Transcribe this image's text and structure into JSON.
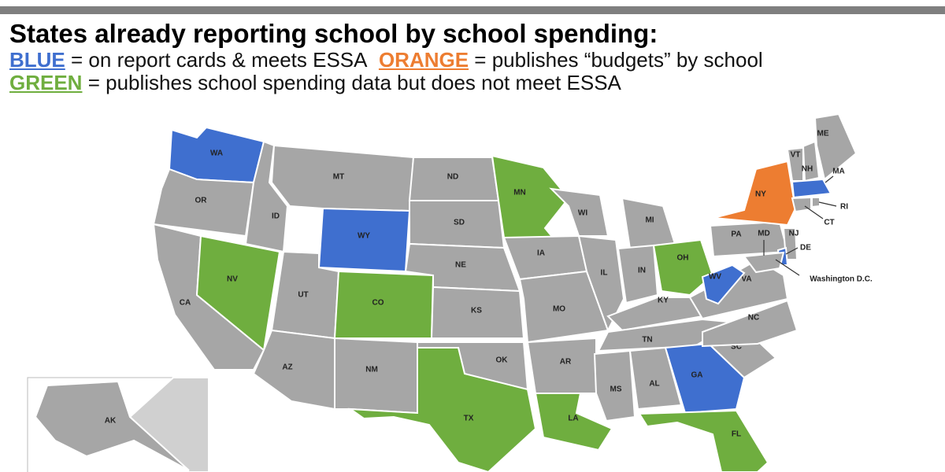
{
  "title": "States already reporting school by school spending:",
  "legend": [
    {
      "key": "BLUE",
      "text": "= on report cards & meets ESSA",
      "color": "#3f6fcf"
    },
    {
      "key": "ORANGE",
      "text": "= publishes “budgets” by school",
      "color": "#ed7d31"
    },
    {
      "key": "GREEN",
      "text": "= publishes school spending data but does not meet ESSA",
      "color": "#6fae3f"
    }
  ],
  "states": [
    {
      "label": "WA",
      "color": "#3f6fcf"
    },
    {
      "label": "OR",
      "color": "#a6a6a6"
    },
    {
      "label": "CA",
      "color": "#a6a6a6"
    },
    {
      "label": "NV",
      "color": "#6fae3f"
    },
    {
      "label": "ID",
      "color": "#a6a6a6"
    },
    {
      "label": "MT",
      "color": "#a6a6a6"
    },
    {
      "label": "WY",
      "color": "#3f6fcf"
    },
    {
      "label": "UT",
      "color": "#a6a6a6"
    },
    {
      "label": "CO",
      "color": "#6fae3f"
    },
    {
      "label": "AZ",
      "color": "#a6a6a6"
    },
    {
      "label": "NM",
      "color": "#a6a6a6"
    },
    {
      "label": "ND",
      "color": "#a6a6a6"
    },
    {
      "label": "SD",
      "color": "#a6a6a6"
    },
    {
      "label": "NE",
      "color": "#a6a6a6"
    },
    {
      "label": "KS",
      "color": "#a6a6a6"
    },
    {
      "label": "OK",
      "color": "#a6a6a6"
    },
    {
      "label": "TX",
      "color": "#6fae3f"
    },
    {
      "label": "MN",
      "color": "#6fae3f"
    },
    {
      "label": "IA",
      "color": "#a6a6a6"
    },
    {
      "label": "MO",
      "color": "#a6a6a6"
    },
    {
      "label": "AR",
      "color": "#a6a6a6"
    },
    {
      "label": "LA",
      "color": "#6fae3f"
    },
    {
      "label": "WI",
      "color": "#a6a6a6"
    },
    {
      "label": "IL",
      "color": "#a6a6a6"
    },
    {
      "label": "MI",
      "color": "#a6a6a6"
    },
    {
      "label": "IN",
      "color": "#a6a6a6"
    },
    {
      "label": "OH",
      "color": "#6fae3f"
    },
    {
      "label": "KY",
      "color": "#a6a6a6"
    },
    {
      "label": "TN",
      "color": "#a6a6a6"
    },
    {
      "label": "MS",
      "color": "#a6a6a6"
    },
    {
      "label": "AL",
      "color": "#a6a6a6"
    },
    {
      "label": "GA",
      "color": "#3f6fcf"
    },
    {
      "label": "FL",
      "color": "#6fae3f"
    },
    {
      "label": "SC",
      "color": "#a6a6a6"
    },
    {
      "label": "NC",
      "color": "#a6a6a6"
    },
    {
      "label": "VA",
      "color": "#a6a6a6"
    },
    {
      "label": "WV",
      "color": "#3f6fcf"
    },
    {
      "label": "PA",
      "color": "#a6a6a6"
    },
    {
      "label": "NY",
      "color": "#ed7d31"
    },
    {
      "label": "VT",
      "color": "#a6a6a6"
    },
    {
      "label": "NH",
      "color": "#a6a6a6"
    },
    {
      "label": "ME",
      "color": "#a6a6a6"
    },
    {
      "label": "MA",
      "color": "#3f6fcf"
    },
    {
      "label": "CT",
      "color": "#a6a6a6"
    },
    {
      "label": "RI",
      "color": "#a6a6a6"
    },
    {
      "label": "NJ",
      "color": "#a6a6a6"
    },
    {
      "label": "DE",
      "color": "#3f6fcf"
    },
    {
      "label": "MD",
      "color": "#a6a6a6"
    },
    {
      "label": "AK",
      "color": "#a6a6a6"
    }
  ],
  "dc_label": "Washington D.C."
}
